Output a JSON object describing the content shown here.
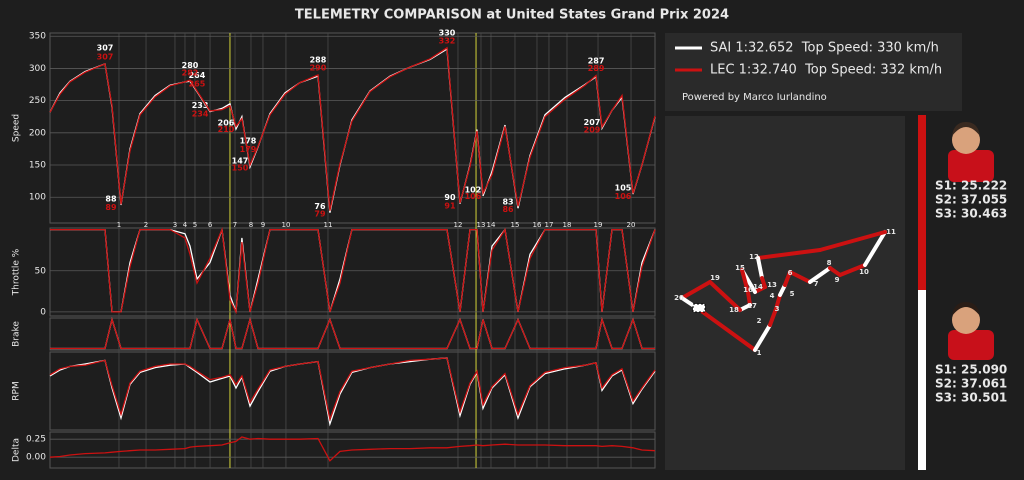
{
  "title": "TELEMETRY COMPARISON at United States Grand Prix 2024",
  "credit": "Powered by Marco Iurlandino",
  "drivers": [
    {
      "sectors": [
        "S1: 25.222",
        "S2: 37.055",
        "S3: 30.463"
      ]
    },
    {
      "sectors": [
        "S1: 25.090",
        "S2: 37.061",
        "S3: 30.501"
      ]
    }
  ],
  "chart_data": [
    {
      "type": "line",
      "ylabel": "Speed",
      "grid": true,
      "x": [
        0,
        91,
        182,
        318,
        500,
        564,
        645,
        727,
        818,
        955,
        1091,
        1227,
        1273,
        1336,
        1455,
        1564,
        1636,
        1691,
        1745,
        1818,
        1891,
        2000,
        2136,
        2273,
        2436,
        2545,
        2636,
        2745,
        2909,
        3091,
        3273,
        3455,
        3609,
        3727,
        3818,
        3882,
        3936,
        4018,
        4136,
        4255,
        4364,
        4500,
        4682,
        4864,
        4964,
        5018,
        5109,
        5200,
        5300,
        5382,
        5500
      ],
      "xlim": [
        0,
        5500
      ],
      "ylim": [
        60,
        355
      ],
      "yticks": [
        100,
        150,
        200,
        250,
        300,
        350
      ],
      "corners": {
        "numbers": [
          1,
          2,
          3,
          4,
          5,
          6,
          7,
          8,
          9,
          10,
          11,
          12,
          13,
          14,
          15,
          16,
          17,
          18,
          19,
          20
        ],
        "x": [
          627,
          873,
          1136,
          1227,
          1318,
          1455,
          1682,
          1827,
          1936,
          2145,
          2527,
          3709,
          3918,
          4009,
          4227,
          4427,
          4536,
          4700,
          4982,
          5282
        ]
      },
      "sector_boundaries": [
        1636,
        3873
      ],
      "series": [
        {
          "name": "SAI 1:32.652  Top Speed: 330 km/h",
          "color": "#ffffff",
          "values": [
            232,
            262,
            280,
            295,
            307,
            240,
            88,
            175,
            230,
            258,
            274,
            279,
            280,
            264,
            233,
            238,
            245,
            206,
            225,
            147,
            178,
            230,
            262,
            278,
            288,
            76,
            150,
            220,
            265,
            288,
            302,
            314,
            330,
            90,
            150,
            205,
            102,
            140,
            212,
            83,
            165,
            228,
            255,
            275,
            287,
            207,
            235,
            255,
            105,
            150,
            225
          ],
          "value_labels": [
            null,
            null,
            null,
            null,
            "307",
            null,
            "88",
            null,
            null,
            null,
            null,
            null,
            "280",
            "264",
            "233",
            null,
            null,
            "206",
            null,
            "147",
            "178",
            null,
            null,
            null,
            "288",
            "76",
            null,
            null,
            null,
            null,
            null,
            null,
            "330",
            "90",
            null,
            null,
            "102",
            null,
            null,
            "83",
            null,
            null,
            null,
            null,
            "287",
            "207",
            null,
            null,
            "105",
            null,
            null
          ]
        },
        {
          "name": "LEC 1:32.740  Top Speed: 332 km/h",
          "color": "#cc1111",
          "values": [
            232,
            260,
            279,
            294,
            307,
            242,
            89,
            172,
            228,
            256,
            273,
            279,
            282,
            265,
            234,
            236,
            242,
            210,
            222,
            150,
            179,
            228,
            260,
            278,
            290,
            79,
            152,
            218,
            264,
            287,
            302,
            315,
            332,
            91,
            148,
            203,
            106,
            135,
            210,
            86,
            162,
            225,
            252,
            274,
            289,
            209,
            235,
            258,
            106,
            150,
            226
          ],
          "value_labels": [
            null,
            null,
            null,
            null,
            "307",
            null,
            "89",
            null,
            null,
            null,
            null,
            null,
            "282",
            "265",
            "234",
            null,
            null,
            "210",
            null,
            "150",
            "179",
            null,
            null,
            null,
            "290",
            "79",
            null,
            null,
            null,
            null,
            null,
            null,
            "332",
            "91",
            null,
            null,
            "106",
            null,
            null,
            "86",
            null,
            null,
            null,
            null,
            "289",
            "209",
            null,
            null,
            "106",
            null,
            null
          ]
        }
      ]
    },
    {
      "type": "line",
      "ylabel": "Throttle %",
      "grid": true,
      "ylim": [
        -5,
        102
      ],
      "yticks": [
        0,
        50
      ],
      "series": [
        {
          "color": "#ffffff",
          "values": [
            100,
            100,
            100,
            100,
            100,
            0,
            0,
            60,
            100,
            100,
            100,
            95,
            80,
            40,
            60,
            100,
            20,
            0,
            90,
            0,
            40,
            100,
            100,
            100,
            100,
            0,
            40,
            100,
            100,
            100,
            100,
            100,
            100,
            0,
            100,
            100,
            0,
            80,
            100,
            0,
            70,
            100,
            100,
            100,
            100,
            0,
            100,
            100,
            0,
            60,
            100
          ]
        },
        {
          "color": "#cc1111",
          "values": [
            100,
            100,
            100,
            100,
            100,
            0,
            0,
            55,
            100,
            100,
            100,
            90,
            70,
            35,
            65,
            100,
            15,
            0,
            85,
            0,
            35,
            100,
            100,
            100,
            100,
            0,
            35,
            100,
            100,
            100,
            100,
            100,
            100,
            0,
            100,
            100,
            0,
            75,
            100,
            0,
            65,
            100,
            100,
            100,
            100,
            0,
            100,
            100,
            0,
            55,
            100
          ]
        }
      ]
    },
    {
      "type": "line",
      "ylabel": "Brake",
      "ylim": [
        -0.05,
        1.05
      ],
      "series": [
        {
          "color": "#ffffff",
          "values": [
            0,
            0,
            0,
            0,
            0,
            1,
            0,
            0,
            0,
            0,
            0,
            0,
            0,
            1,
            0,
            0,
            1,
            0,
            0,
            1,
            0,
            0,
            0,
            0,
            0,
            1,
            0,
            0,
            0,
            0,
            0,
            0,
            0,
            1,
            0,
            0,
            1,
            0,
            0,
            1,
            0,
            0,
            0,
            0,
            0,
            1,
            0,
            0,
            1,
            0,
            0
          ]
        },
        {
          "color": "#cc1111",
          "values": [
            0,
            0,
            0,
            0,
            0,
            1,
            0,
            0,
            0,
            0,
            0,
            0,
            0,
            1,
            0,
            0,
            1,
            0,
            0,
            1,
            0,
            0,
            0,
            0,
            0,
            1,
            0,
            0,
            0,
            0,
            0,
            0,
            0,
            1,
            0,
            0,
            1,
            0,
            0,
            1,
            0,
            0,
            0,
            0,
            0,
            1,
            0,
            0,
            1,
            0,
            0
          ]
        }
      ]
    },
    {
      "type": "line",
      "ylabel": "RPM",
      "ylim": [
        6000,
        12500
      ],
      "series": [
        {
          "color": "#ffffff",
          "values": [
            10500,
            11000,
            11300,
            11500,
            11800,
            9500,
            7000,
            9800,
            10800,
            11200,
            11400,
            11500,
            11200,
            10800,
            10000,
            10300,
            10500,
            9500,
            10400,
            8000,
            9200,
            10900,
            11300,
            11500,
            11700,
            6500,
            9000,
            10800,
            11200,
            11500,
            11700,
            11900,
            12000,
            7200,
            9800,
            10800,
            7800,
            9500,
            10600,
            7000,
            9600,
            10700,
            11100,
            11400,
            11600,
            9300,
            10500,
            11000,
            8200,
            9400,
            10900
          ]
        },
        {
          "color": "#cc1111",
          "values": [
            10600,
            11100,
            11300,
            11400,
            11800,
            9700,
            7300,
            9900,
            10900,
            11300,
            11500,
            11500,
            11300,
            10900,
            10200,
            10400,
            10600,
            9800,
            10500,
            8300,
            9400,
            11000,
            11300,
            11500,
            11700,
            6900,
            9200,
            10900,
            11200,
            11500,
            11800,
            11900,
            12000,
            7500,
            9900,
            10900,
            8100,
            9600,
            10700,
            7300,
            9700,
            10800,
            11200,
            11400,
            11600,
            9500,
            10600,
            11100,
            8400,
            9500,
            11000
          ]
        }
      ]
    },
    {
      "type": "line",
      "ylabel": "Delta",
      "grid": true,
      "ylim": [
        -0.15,
        0.35
      ],
      "yticks": [
        {
          "value": 0,
          "label": "0.00"
        },
        0.25
      ],
      "series": [
        {
          "color": "#cc1111",
          "values": [
            0,
            0.01,
            0.03,
            0.05,
            0.06,
            0.07,
            0.08,
            0.09,
            0.1,
            0.1,
            0.11,
            0.12,
            0.14,
            0.15,
            0.16,
            0.17,
            0.2,
            0.22,
            0.28,
            0.25,
            0.26,
            0.25,
            0.25,
            0.25,
            0.26,
            -0.05,
            0.08,
            0.1,
            0.11,
            0.12,
            0.12,
            0.13,
            0.13,
            0.15,
            0.16,
            0.17,
            0.16,
            0.17,
            0.18,
            0.17,
            0.17,
            0.17,
            0.16,
            0.16,
            0.16,
            0.15,
            0.16,
            0.15,
            0.13,
            0.1,
            0.09
          ]
        }
      ]
    }
  ]
}
